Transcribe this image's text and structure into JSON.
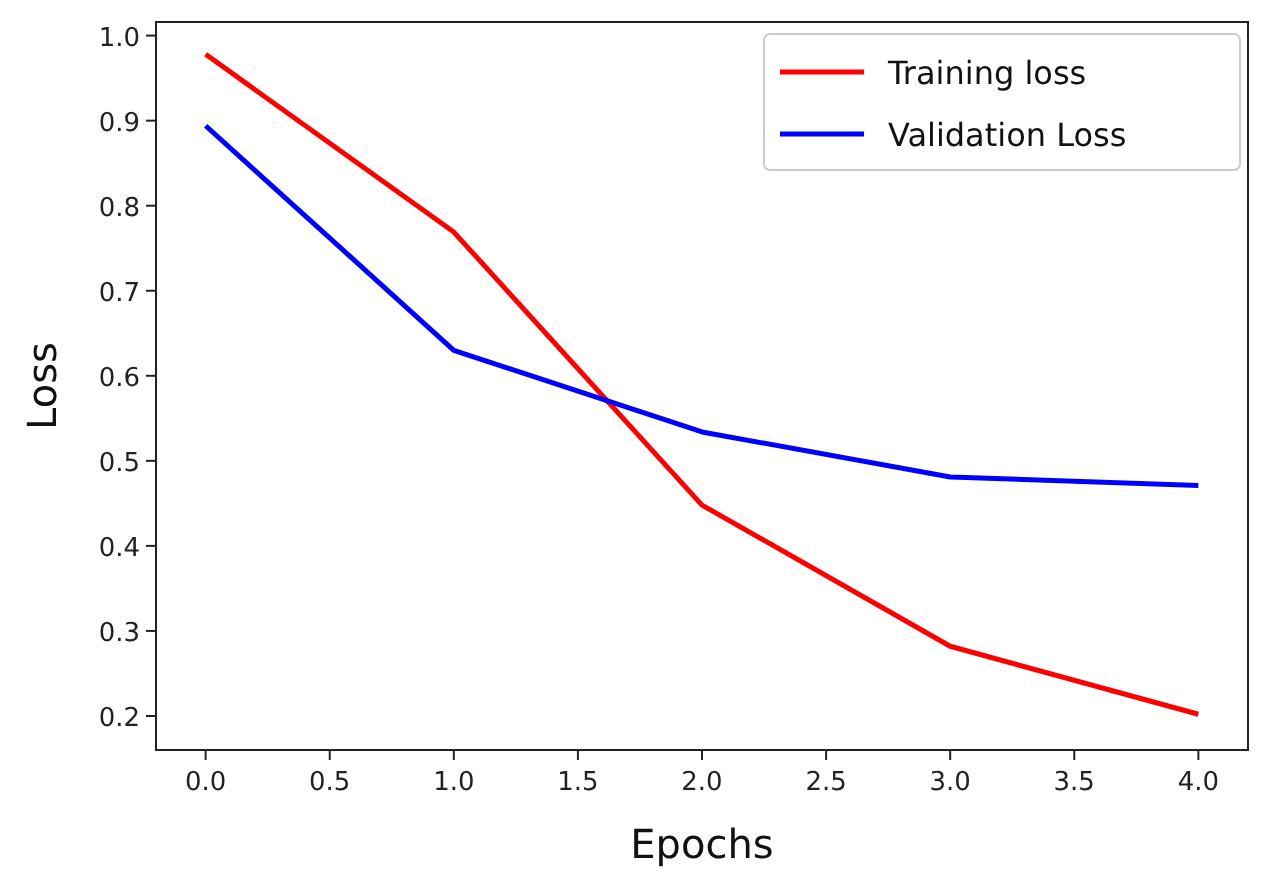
{
  "chart_data": {
    "type": "line",
    "xlabel": "Epochs",
    "ylabel": "Loss",
    "x": [
      0,
      1,
      2,
      3,
      4
    ],
    "series": [
      {
        "name": "Training loss",
        "color": "#ff0000",
        "values": [
          0.978,
          0.769,
          0.448,
          0.282,
          0.202
        ]
      },
      {
        "name": "Validation Loss",
        "color": "#0000ff",
        "values": [
          0.894,
          0.63,
          0.534,
          0.481,
          0.471
        ]
      }
    ],
    "xlim": [
      -0.2,
      4.2
    ],
    "xticks": [
      {
        "value": 0,
        "label": "0.0"
      },
      0.5,
      {
        "value": 1,
        "label": "1.0"
      },
      1.5,
      {
        "value": 2,
        "label": "2.0"
      },
      2.5,
      {
        "value": 3,
        "label": "3.0"
      },
      3.5,
      {
        "value": 4,
        "label": "4.0"
      }
    ],
    "ylim": [
      0.16,
      1.016
    ],
    "yticks": [
      0.2,
      0.3,
      0.4,
      0.5,
      0.6,
      0.7,
      0.8,
      0.9,
      {
        "value": 1,
        "label": "1.0"
      }
    ],
    "legend": "top right",
    "grid": false,
    "marker": "none",
    "line_style": "solid"
  }
}
